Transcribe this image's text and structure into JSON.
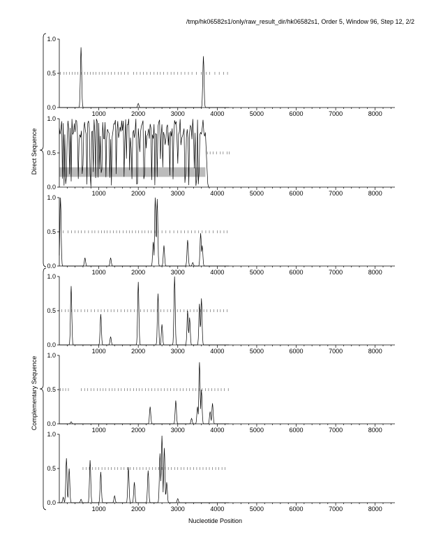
{
  "header": {
    "title": "/tmp/hk06582s1/only/raw_result_dir/hk06582s1, Order 5, Window 96, Step 12, 2/2"
  },
  "labels": {
    "direct_group": "Direct Sequence",
    "complementary_group": "Complementary Sequence",
    "x_axis": "Nucleotide Position"
  },
  "colors": {
    "line": "#000000",
    "axis": "#000000",
    "highlight": "#bbbbbb",
    "marker": "#555555"
  },
  "chart_data": {
    "type": "line",
    "xlim": [
      0,
      8500
    ],
    "ylim": [
      0,
      1
    ],
    "x_ticks": [
      1000,
      2000,
      3000,
      4000,
      5000,
      6000,
      7000,
      8000
    ],
    "y_ticks": [
      0.0,
      0.5,
      1.0
    ],
    "y_tick_labels": [
      "0.0",
      "0.5",
      "1.0"
    ],
    "xlabel": "Nucleotide Position",
    "panels": [
      {
        "group": "direct",
        "peaks": [
          [
            550,
            0.88
          ],
          [
            2000,
            0.06
          ],
          [
            3650,
            0.75
          ]
        ],
        "markers": [
          30,
          120,
          180,
          260,
          330,
          400,
          470,
          560,
          640,
          720,
          790,
          860,
          930,
          1010,
          1090,
          1160,
          1240,
          1320,
          1400,
          1490,
          1570,
          1650,
          1740,
          1880,
          1960,
          2050,
          2130,
          2220,
          2310,
          2400,
          2480,
          2560,
          2640,
          2740,
          2830,
          2910,
          3000,
          3090,
          3180,
          3270,
          3360,
          3470,
          3600,
          3720,
          3810,
          3940,
          4050,
          4160,
          4260
        ]
      },
      {
        "group": "direct",
        "special": "dense",
        "highlight": [
          0,
          3700,
          0.15,
          0.29
        ],
        "markers": [
          3750,
          3820,
          3900,
          3980,
          4080,
          4150,
          4250,
          4300
        ]
      },
      {
        "group": "direct",
        "peaks": [
          [
            30,
            1.0
          ],
          [
            650,
            0.12
          ],
          [
            1300,
            0.12
          ],
          [
            2380,
            0.35
          ],
          [
            2430,
            1.0
          ],
          [
            2480,
            0.98
          ],
          [
            2650,
            0.3
          ],
          [
            3250,
            0.38
          ],
          [
            3380,
            0.05
          ],
          [
            3580,
            0.48
          ],
          [
            3620,
            0.3
          ]
        ],
        "markers": [
          100,
          220,
          310,
          400,
          480,
          560,
          650,
          740,
          830,
          900,
          990,
          1070,
          1140,
          1210,
          1290,
          1370,
          1450,
          1530,
          1620,
          1700,
          1780,
          1850,
          1930,
          2010,
          2090,
          2170,
          2250,
          2330,
          2420,
          2500,
          2600,
          2700,
          2800,
          2900,
          3000,
          3080,
          3170,
          3260,
          3350,
          3440,
          3530,
          3620,
          3710,
          3800,
          3900,
          4000,
          4080,
          4170,
          4250
        ]
      },
      {
        "group": "complementary",
        "peaks": [
          [
            300,
            0.86
          ],
          [
            1050,
            0.45
          ],
          [
            1300,
            0.12
          ],
          [
            2000,
            0.92
          ],
          [
            2500,
            0.75
          ],
          [
            2600,
            0.3
          ],
          [
            2920,
            1.0
          ],
          [
            3250,
            0.5
          ],
          [
            3300,
            0.4
          ],
          [
            3550,
            0.6
          ],
          [
            3600,
            0.68
          ]
        ],
        "markers": [
          60,
          150,
          230,
          310,
          390,
          470,
          550,
          640,
          720,
          810,
          890,
          980,
          1060,
          1140,
          1230,
          1310,
          1390,
          1480,
          1560,
          1650,
          1730,
          1810,
          1900,
          1980,
          2060,
          2150,
          2230,
          2320,
          2400,
          2480,
          2570,
          2650,
          2740,
          2820,
          2900,
          2990,
          3070,
          3160,
          3240,
          3320,
          3410,
          3490,
          3580,
          3660,
          3740,
          3830,
          3910,
          4000,
          4080,
          4160,
          4250
        ]
      },
      {
        "group": "complementary",
        "peaks": [
          [
            300,
            0.03
          ],
          [
            2300,
            0.25
          ],
          [
            2950,
            0.34
          ],
          [
            3350,
            0.08
          ],
          [
            3500,
            0.25
          ],
          [
            3550,
            0.9
          ],
          [
            3600,
            0.5
          ],
          [
            3820,
            0.18
          ],
          [
            3880,
            0.3
          ]
        ],
        "markers": [
          30,
          90,
          160,
          230,
          560,
          640,
          720,
          800,
          880,
          960,
          1040,
          1110,
          1180,
          1260,
          1340,
          1410,
          1490,
          1570,
          1650,
          1720,
          1800,
          1880,
          1950,
          2020,
          2100,
          2180,
          2260,
          2340,
          2420,
          2500,
          2580,
          2660,
          2740,
          2820,
          2900,
          2980,
          3060,
          3140,
          3220,
          3300,
          3380,
          3460,
          3540,
          3620,
          3700,
          3780,
          3860,
          3940,
          4020,
          4100,
          4180,
          4280
        ]
      },
      {
        "group": "complementary",
        "peaks": [
          [
            100,
            0.08
          ],
          [
            180,
            0.65
          ],
          [
            250,
            0.5
          ],
          [
            550,
            0.05
          ],
          [
            780,
            0.62
          ],
          [
            1050,
            0.45
          ],
          [
            1400,
            0.1
          ],
          [
            1750,
            0.52
          ],
          [
            1900,
            0.3
          ],
          [
            2250,
            0.47
          ],
          [
            2550,
            0.72
          ],
          [
            2600,
            0.98
          ],
          [
            2660,
            0.8
          ],
          [
            2720,
            0.3
          ],
          [
            3000,
            0.06
          ]
        ],
        "markers": [
          600,
          680,
          760,
          840,
          920,
          1000,
          1080,
          1160,
          1240,
          1320,
          1400,
          1480,
          1560,
          1640,
          1720,
          1800,
          1880,
          1960,
          2040,
          2120,
          2200,
          2280,
          2360,
          2440,
          2520,
          2600,
          2680,
          2760,
          2840,
          2920,
          3000,
          3080,
          3160,
          3240,
          3320,
          3400,
          3480,
          3560,
          3640,
          3720,
          3800,
          3880,
          3960,
          4040,
          4120,
          4200
        ]
      }
    ]
  }
}
